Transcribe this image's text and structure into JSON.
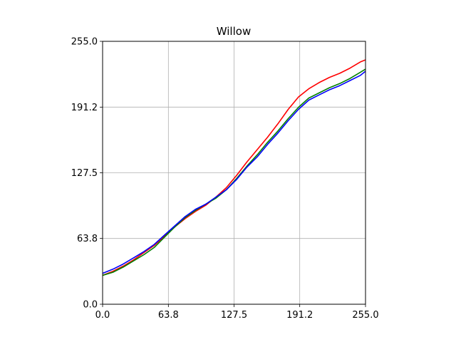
{
  "chart_data": {
    "type": "line",
    "title": "Willow",
    "xlabel": "",
    "ylabel": "",
    "xlim": [
      0,
      255
    ],
    "ylim": [
      0,
      255
    ],
    "xticks": [
      "0.0",
      "63.8",
      "127.5",
      "191.2",
      "255.0"
    ],
    "yticks": [
      "0.0",
      "63.8",
      "127.5",
      "191.2",
      "255.0"
    ],
    "grid": true,
    "series": [
      {
        "color": "#ff0000",
        "x": [
          0,
          10,
          20,
          30,
          40,
          50,
          60,
          70,
          80,
          90,
          100,
          110,
          120,
          130,
          140,
          150,
          160,
          170,
          180,
          190,
          200,
          210,
          220,
          230,
          240,
          250,
          255
        ],
        "y": [
          28,
          32,
          37,
          43,
          50,
          57,
          66,
          75,
          83,
          90,
          96,
          104,
          113,
          125,
          138,
          150,
          162,
          175,
          189,
          201,
          209,
          215,
          220,
          224,
          229,
          235,
          237
        ]
      },
      {
        "color": "#008000",
        "x": [
          0,
          10,
          20,
          30,
          40,
          50,
          60,
          70,
          80,
          90,
          100,
          110,
          120,
          130,
          140,
          150,
          160,
          170,
          180,
          190,
          200,
          210,
          220,
          230,
          240,
          250,
          255
        ],
        "y": [
          28,
          31,
          36,
          42,
          48,
          55,
          65,
          75,
          84,
          91,
          97,
          103,
          111,
          122,
          134,
          145,
          157,
          168,
          180,
          191,
          200,
          205,
          210,
          214,
          219,
          225,
          228
        ]
      },
      {
        "color": "#0000ff",
        "x": [
          0,
          10,
          20,
          30,
          40,
          50,
          60,
          70,
          80,
          90,
          100,
          110,
          120,
          130,
          140,
          150,
          160,
          170,
          180,
          190,
          200,
          210,
          220,
          230,
          240,
          250,
          255
        ],
        "y": [
          30,
          34,
          39,
          45,
          51,
          58,
          67,
          76,
          85,
          92,
          97,
          104,
          111,
          121,
          133,
          143,
          155,
          166,
          178,
          189,
          198,
          203,
          208,
          212,
          217,
          222,
          226
        ]
      }
    ]
  }
}
